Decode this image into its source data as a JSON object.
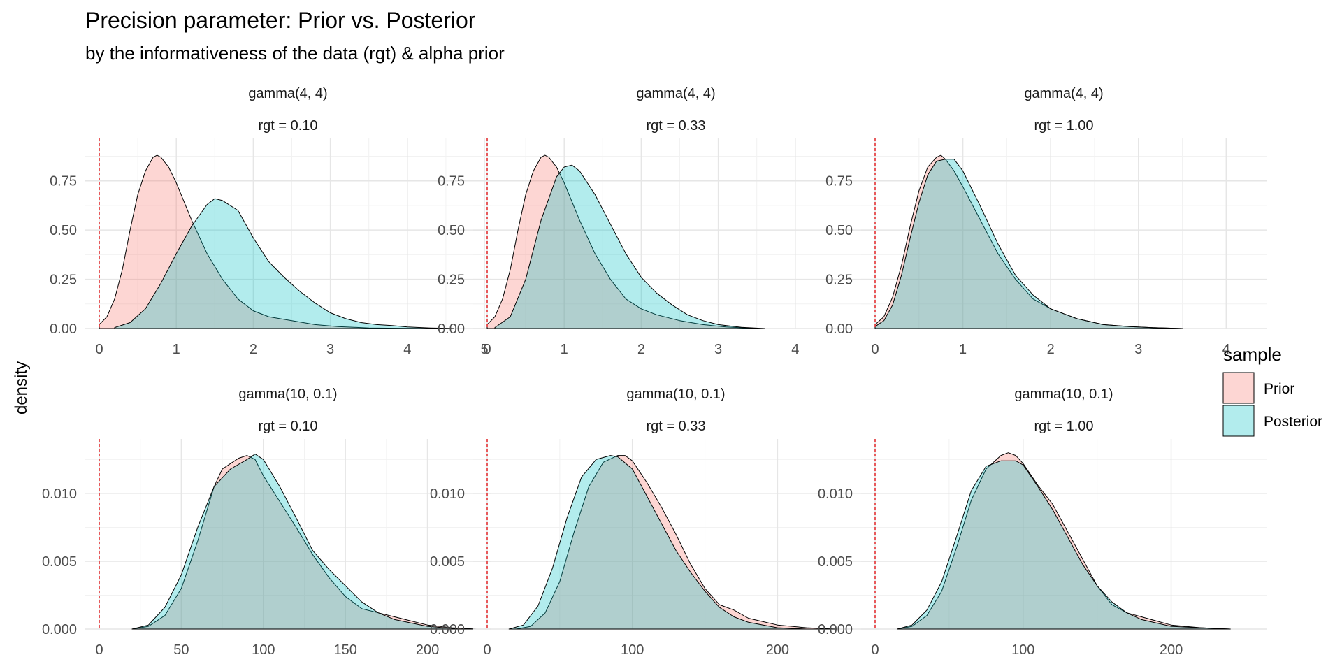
{
  "chart_data": {
    "type": "area",
    "title": "Precision parameter: Prior vs. Posterior",
    "subtitle": "by the informativeness of the data (rgt) & alpha prior",
    "ylabel": "density",
    "legend": {
      "title": "sample",
      "position": "right",
      "items": [
        {
          "label": "Prior",
          "color": "#F8766D"
        },
        {
          "label": "Posterior",
          "color": "#00BFC4"
        }
      ]
    },
    "fill_alpha": 0.3,
    "reference_line": {
      "x": 0,
      "color": "#e41a1c",
      "style": "dashed"
    },
    "grid": true,
    "panels": [
      {
        "strip": [
          "gamma(4, 4)",
          "rgt = 0.10"
        ],
        "xlim": [
          0,
          4.9
        ],
        "ylim": [
          0,
          0.93
        ],
        "xticks": [
          0,
          1,
          2,
          3,
          4,
          5
        ],
        "xtick_labels": [
          "0",
          "1",
          "2",
          "3",
          "4",
          "5"
        ],
        "yticks": [
          0,
          0.25,
          0.5,
          0.75
        ],
        "ytick_labels": [
          "0.00",
          "0.25",
          "0.50",
          "0.75"
        ],
        "series": [
          {
            "name": "Prior",
            "x": [
              0,
              0.1,
              0.2,
              0.3,
              0.4,
              0.5,
              0.6,
              0.7,
              0.75,
              0.8,
              0.9,
              1.0,
              1.2,
              1.4,
              1.6,
              1.8,
              2.0,
              2.2,
              2.5,
              2.8,
              3.1,
              3.5,
              4.0,
              4.6
            ],
            "y": [
              0.02,
              0.06,
              0.15,
              0.3,
              0.5,
              0.68,
              0.8,
              0.87,
              0.88,
              0.87,
              0.82,
              0.74,
              0.55,
              0.38,
              0.25,
              0.15,
              0.09,
              0.06,
              0.04,
              0.02,
              0.01,
              0.003,
              0.001,
              0
            ]
          },
          {
            "name": "Posterior",
            "x": [
              0.2,
              0.4,
              0.6,
              0.8,
              1.0,
              1.2,
              1.4,
              1.5,
              1.6,
              1.8,
              2.0,
              2.2,
              2.4,
              2.6,
              2.8,
              3.0,
              3.2,
              3.4,
              3.6,
              3.8,
              4.0,
              4.3,
              4.6
            ],
            "y": [
              0.005,
              0.03,
              0.1,
              0.23,
              0.38,
              0.52,
              0.63,
              0.66,
              0.65,
              0.6,
              0.46,
              0.34,
              0.26,
              0.19,
              0.13,
              0.08,
              0.05,
              0.03,
              0.02,
              0.015,
              0.008,
              0.003,
              0
            ]
          }
        ]
      },
      {
        "strip": [
          "gamma(4, 4)",
          "rgt = 0.33"
        ],
        "xlim": [
          0,
          4.9
        ],
        "ylim": [
          0,
          0.93
        ],
        "xticks": [
          0,
          1,
          2,
          3,
          4
        ],
        "xtick_labels": [
          "0",
          "1",
          "2",
          "3",
          "4"
        ],
        "yticks": [
          0,
          0.25,
          0.5,
          0.75
        ],
        "ytick_labels": [
          "0.00",
          "0.25",
          "0.50",
          "0.75"
        ],
        "series": [
          {
            "name": "Prior",
            "x": [
              0,
              0.1,
              0.2,
              0.3,
              0.4,
              0.5,
              0.6,
              0.7,
              0.75,
              0.8,
              0.9,
              1.0,
              1.2,
              1.4,
              1.6,
              1.8,
              2.0,
              2.2,
              2.5,
              2.8,
              3.1,
              3.5
            ],
            "y": [
              0.02,
              0.06,
              0.15,
              0.3,
              0.5,
              0.68,
              0.8,
              0.87,
              0.88,
              0.87,
              0.82,
              0.74,
              0.55,
              0.38,
              0.25,
              0.15,
              0.1,
              0.07,
              0.04,
              0.02,
              0.008,
              0
            ]
          },
          {
            "name": "Posterior",
            "x": [
              0.1,
              0.3,
              0.5,
              0.7,
              0.9,
              1.0,
              1.1,
              1.2,
              1.4,
              1.6,
              1.8,
              2.0,
              2.2,
              2.4,
              2.6,
              2.8,
              3.0,
              3.3,
              3.6
            ],
            "y": [
              0.005,
              0.06,
              0.25,
              0.55,
              0.77,
              0.82,
              0.83,
              0.8,
              0.68,
              0.53,
              0.38,
              0.26,
              0.18,
              0.12,
              0.07,
              0.04,
              0.02,
              0.006,
              0
            ]
          }
        ]
      },
      {
        "strip": [
          "gamma(4, 4)",
          "rgt = 1.00"
        ],
        "xlim": [
          0,
          4.3
        ],
        "ylim": [
          0,
          0.93
        ],
        "xticks": [
          0,
          1,
          2,
          3,
          4
        ],
        "xtick_labels": [
          "0",
          "1",
          "2",
          "3",
          "4"
        ],
        "yticks": [
          0,
          0.25,
          0.5,
          0.75
        ],
        "ytick_labels": [
          "0.00",
          "0.25",
          "0.50",
          "0.75"
        ],
        "series": [
          {
            "name": "Prior",
            "x": [
              0,
              0.1,
              0.2,
              0.3,
              0.4,
              0.5,
              0.6,
              0.7,
              0.75,
              0.8,
              0.9,
              1.0,
              1.2,
              1.4,
              1.6,
              1.8,
              2.0,
              2.3,
              2.6,
              2.9,
              3.2,
              3.5
            ],
            "y": [
              0.02,
              0.06,
              0.16,
              0.32,
              0.52,
              0.7,
              0.82,
              0.87,
              0.88,
              0.86,
              0.8,
              0.72,
              0.55,
              0.38,
              0.25,
              0.15,
              0.1,
              0.05,
              0.02,
              0.01,
              0.004,
              0
            ]
          },
          {
            "name": "Posterior",
            "x": [
              0,
              0.1,
              0.2,
              0.3,
              0.4,
              0.5,
              0.6,
              0.7,
              0.8,
              0.9,
              1.0,
              1.2,
              1.4,
              1.6,
              1.8,
              2.0,
              2.3,
              2.6,
              2.9,
              3.2,
              3.5
            ],
            "y": [
              0.01,
              0.04,
              0.12,
              0.27,
              0.46,
              0.64,
              0.78,
              0.85,
              0.86,
              0.86,
              0.8,
              0.62,
              0.43,
              0.27,
              0.17,
              0.1,
              0.05,
              0.02,
              0.01,
              0.004,
              0
            ]
          }
        ]
      },
      {
        "strip": [
          "gamma(10, 0.1)",
          "rgt = 0.10"
        ],
        "xlim": [
          0,
          230
        ],
        "ylim": [
          0,
          0.0135
        ],
        "xticks": [
          0,
          50,
          100,
          150,
          200
        ],
        "xtick_labels": [
          "0",
          "50",
          "100",
          "150",
          "200"
        ],
        "yticks": [
          0,
          0.005,
          0.01
        ],
        "ytick_labels": [
          "0.000",
          "0.005",
          "0.010"
        ],
        "series": [
          {
            "name": "Prior",
            "x": [
              20,
              30,
              40,
              50,
              60,
              70,
              75,
              80,
              85,
              90,
              95,
              100,
              110,
              120,
              130,
              140,
              150,
              160,
              170,
              180,
              190,
              200,
              215,
              230
            ],
            "y": [
              0,
              0.0002,
              0.001,
              0.003,
              0.0065,
              0.0105,
              0.0118,
              0.0122,
              0.0126,
              0.0128,
              0.0125,
              0.0113,
              0.0094,
              0.0075,
              0.0055,
              0.0038,
              0.0024,
              0.0015,
              0.0012,
              0.0009,
              0.0006,
              0.0003,
              0.0001,
              0
            ]
          },
          {
            "name": "Posterior",
            "x": [
              20,
              30,
              40,
              50,
              60,
              70,
              80,
              90,
              95,
              100,
              110,
              120,
              130,
              140,
              150,
              160,
              170,
              180,
              200,
              220
            ],
            "y": [
              0,
              0.0003,
              0.0016,
              0.004,
              0.0075,
              0.0105,
              0.0118,
              0.0125,
              0.0129,
              0.0125,
              0.0105,
              0.0082,
              0.0058,
              0.0044,
              0.0032,
              0.002,
              0.0012,
              0.0007,
              0.0002,
              0
            ]
          }
        ]
      },
      {
        "strip": [
          "gamma(10, 0.1)",
          "rgt = 0.33"
        ],
        "xlim": [
          0,
          260
        ],
        "ylim": [
          0,
          0.0135
        ],
        "xticks": [
          0,
          100,
          200
        ],
        "xtick_labels": [
          "0",
          "100",
          "200"
        ],
        "yticks": [
          0,
          0.005,
          0.01
        ],
        "ytick_labels": [
          "0.000",
          "0.005",
          "0.010"
        ],
        "series": [
          {
            "name": "Prior",
            "x": [
              20,
              30,
              40,
              50,
              60,
              70,
              80,
              90,
              95,
              100,
              110,
              120,
              130,
              140,
              150,
              160,
              170,
              180,
              200,
              220,
              240
            ],
            "y": [
              0,
              0.0002,
              0.0012,
              0.0035,
              0.0072,
              0.0105,
              0.0123,
              0.0128,
              0.0128,
              0.0124,
              0.0108,
              0.009,
              0.007,
              0.0048,
              0.003,
              0.0018,
              0.0014,
              0.0008,
              0.0003,
              0.0001,
              0
            ]
          },
          {
            "name": "Posterior",
            "x": [
              15,
              25,
              35,
              45,
              55,
              65,
              75,
              85,
              90,
              100,
              110,
              120,
              130,
              140,
              150,
              160,
              170,
              180,
              200,
              220
            ],
            "y": [
              0,
              0.0003,
              0.0017,
              0.0045,
              0.0082,
              0.0112,
              0.0125,
              0.0128,
              0.0127,
              0.0118,
              0.0098,
              0.0078,
              0.0058,
              0.0042,
              0.0028,
              0.0016,
              0.0009,
              0.0005,
              0.0001,
              0
            ]
          }
        ]
      },
      {
        "strip": [
          "gamma(10, 0.1)",
          "rgt = 1.00"
        ],
        "xlim": [
          0,
          255
        ],
        "ylim": [
          0,
          0.0135
        ],
        "xticks": [
          0,
          100,
          200
        ],
        "xtick_labels": [
          "0",
          "100",
          "200"
        ],
        "yticks": [
          0,
          0.005,
          0.01
        ],
        "ytick_labels": [
          "0.000",
          "0.005",
          "0.010"
        ],
        "series": [
          {
            "name": "Prior",
            "x": [
              15,
              25,
              35,
              45,
              55,
              65,
              75,
              85,
              90,
              95,
              100,
              110,
              120,
              130,
              140,
              150,
              160,
              170,
              180,
              200,
              220,
              240
            ],
            "y": [
              0,
              0.0002,
              0.001,
              0.0028,
              0.006,
              0.0095,
              0.0118,
              0.0128,
              0.013,
              0.0128,
              0.0122,
              0.0106,
              0.0092,
              0.0072,
              0.0052,
              0.0032,
              0.0018,
              0.0012,
              0.0009,
              0.0003,
              0.0001,
              0
            ]
          },
          {
            "name": "Posterior",
            "x": [
              15,
              25,
              35,
              45,
              55,
              65,
              75,
              85,
              95,
              100,
              110,
              120,
              130,
              140,
              150,
              160,
              170,
              180,
              200,
              220,
              240
            ],
            "y": [
              0,
              0.0003,
              0.0014,
              0.0035,
              0.0068,
              0.0102,
              0.012,
              0.0124,
              0.0124,
              0.0121,
              0.0105,
              0.0088,
              0.0068,
              0.0048,
              0.0032,
              0.002,
              0.0012,
              0.0007,
              0.0002,
              0.0001,
              0
            ]
          }
        ]
      }
    ]
  }
}
